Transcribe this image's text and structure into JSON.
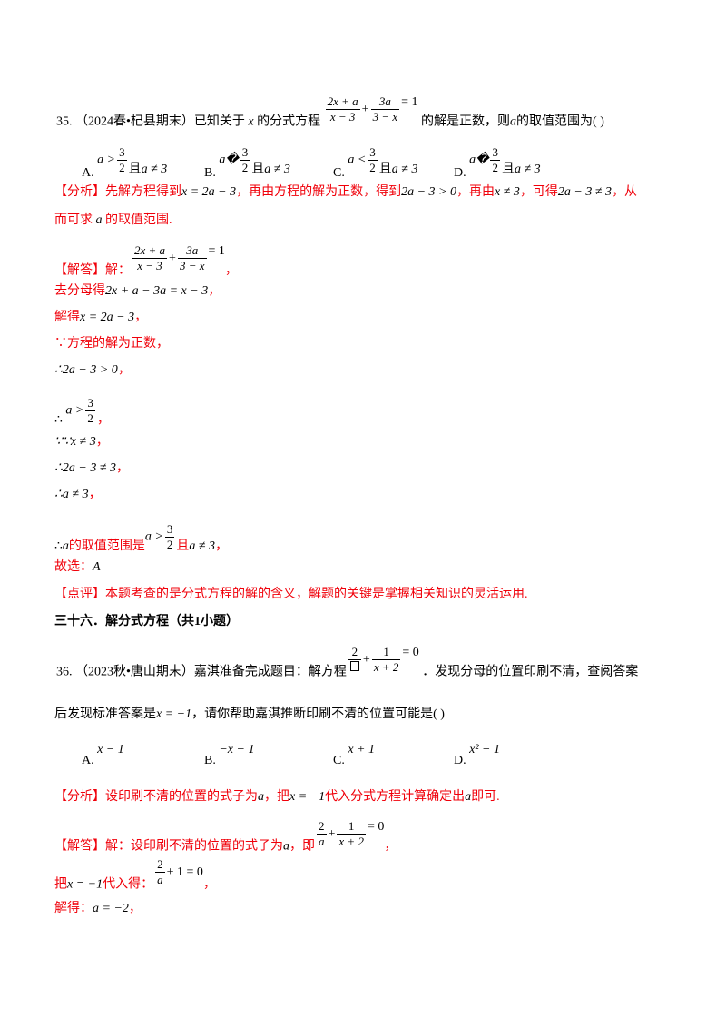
{
  "q35": {
    "number": "35.",
    "source": "（2024春•杞县期末）",
    "stem_a": "已知关于",
    "var_x": "x",
    "stem_b": "的分式方程",
    "eq": {
      "f1n": "2x + a",
      "f1d": "x − 3",
      "plus": "+",
      "f2n": "3a",
      "f2d": "3 − x",
      "rhs": "= 1"
    },
    "stem_c": "的解是正数，则",
    "var_a": "a",
    "stem_d": "的取值范围为",
    "paren": "(      )",
    "options": [
      {
        "letter": "A.",
        "pre": "a >",
        "num": "3",
        "den": "2",
        "mid": "且",
        "post": "a ≠ 3"
      },
      {
        "letter": "B.",
        "pre": "a�",
        "num": "3",
        "den": "2",
        "mid": "且",
        "post": "a ≠ 3"
      },
      {
        "letter": "C.",
        "pre": "a <",
        "num": "3",
        "den": "2",
        "mid": "且",
        "post": "a ≠ 3"
      },
      {
        "letter": "D.",
        "pre": "a�",
        "num": "3",
        "den": "2",
        "mid": "且",
        "post": "a ≠ 3"
      }
    ],
    "analysis": {
      "tag": "【分析】",
      "t1": "先解方程得到",
      "m1": "x = 2a − 3",
      "t2": "，再由方程的解为正数，得到",
      "m2": "2a − 3 > 0",
      "t3": "，再由",
      "m3": "x ≠ 3",
      "t4": "，可得",
      "m4": "2a − 3 ≠ 3",
      "t5": "，从",
      "t6": "而可求",
      "m5": "a",
      "t7": "的取值范围."
    },
    "solution": {
      "tag": "【解答】",
      "t0": "解：",
      "comma": "，",
      "s1": "去分母得",
      "s1m": "2x + a − 3a = x − 3",
      "s2": "解得",
      "s2m": "x = 2a − 3",
      "s3": "∵方程的解为正数，",
      "s4m": "∴2a − 3 > 0",
      "s5a": "∴",
      "s5b": "a >",
      "s5n": "3",
      "s5d": "2",
      "s6m": "∵∵x ≠ 3",
      "s7m": "∴2a − 3 ≠ 3",
      "s8m": "∴a ≠ 3",
      "s9a": "∴",
      "s9b": "a",
      "s9c": "的取值范围是",
      "s9d": "a >",
      "s9n": "3",
      "s9den": "2",
      "s9e": "且",
      "s9f": "a ≠ 3",
      "choose": "故选：",
      "choice": "A"
    },
    "comment": {
      "tag": "【点评】",
      "text": "本题考查的是分式方程的解的含义，解题的关键是掌握相关知识的灵活运用."
    }
  },
  "section": "三十六．解分式方程（共1小题）",
  "q36": {
    "number": "36.",
    "source": "（2023秋•唐山期末）",
    "stem_a": "嘉淇准备完成题目：解方程",
    "eq": {
      "f1n": "2",
      "f2n": "1",
      "f2d": "x + 2",
      "plus": "+",
      "rhs": "= 0"
    },
    "stem_b": "．发现分母的位置印刷不清，查阅答案",
    "stem_c": "后发现标准答案是",
    "m1": "x = −1",
    "stem_d": "，请你帮助嘉淇推断印刷不清的位置可能是",
    "paren": "(      )",
    "options": [
      {
        "letter": "A.",
        "expr": "x − 1"
      },
      {
        "letter": "B.",
        "expr": "−x − 1"
      },
      {
        "letter": "C.",
        "expr": "x + 1"
      },
      {
        "letter": "D.",
        "expr": "x² − 1"
      }
    ],
    "analysis": {
      "tag": "【分析】",
      "t1": "设印刷不清的位置的式子为",
      "m1": "a",
      "t2": "，把",
      "m2": "x = −1",
      "t3": "代入分式方程计算确定出",
      "m3": "a",
      "t4": "即可."
    },
    "solution": {
      "tag": "【解答】",
      "t0": "解：设印刷不清的位置的式子为",
      "m0": "a",
      "t1": "，即",
      "e1n1": "2",
      "e1d1": "a",
      "e1n2": "1",
      "e1d2": "x + 2",
      "plus": "+",
      "rhs": "= 0",
      "comma": "，",
      "s2a": "把",
      "s2m": "x = −1",
      "s2b": "代入得：",
      "e2n": "2",
      "e2d": "a",
      "e2rest": "+ 1 = 0",
      "s3a": "解得：",
      "s3m": "a = −2",
      "s3c": "，"
    }
  }
}
